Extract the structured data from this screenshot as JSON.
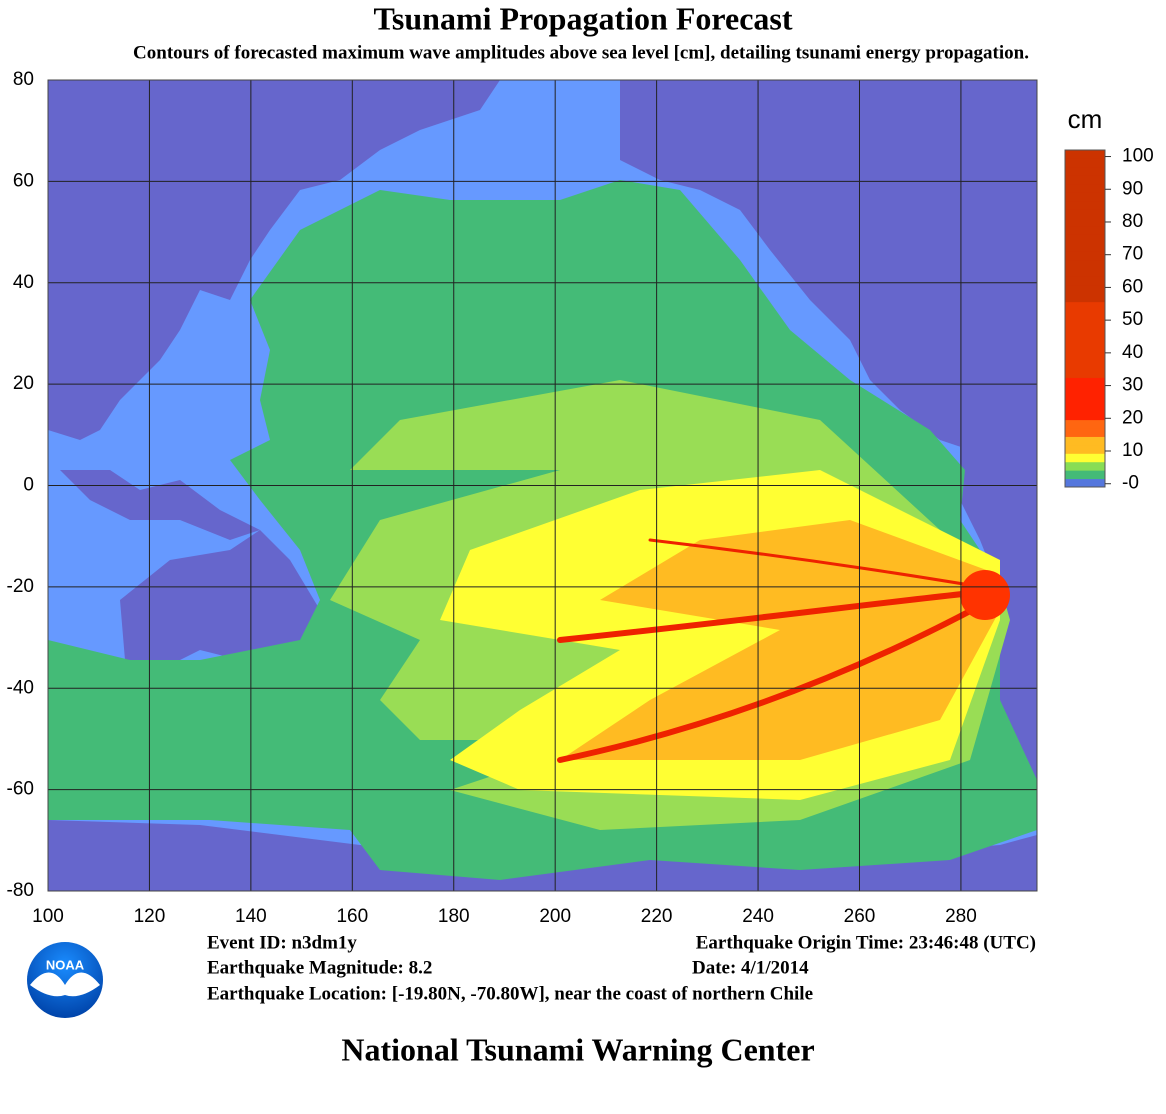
{
  "title": "Tsunami Propagation Forecast",
  "subtitle": "Contours of forecasted maximum wave amplitudes above sea level [cm], detailing tsunami energy propagation.",
  "map": {
    "xlim": [
      100,
      295
    ],
    "ylim": [
      -80,
      80
    ],
    "xticks": [
      100,
      120,
      140,
      160,
      180,
      200,
      220,
      240,
      260,
      280
    ],
    "yticks": [
      -80,
      -60,
      -40,
      -20,
      0,
      20,
      40,
      60,
      80
    ]
  },
  "colorbar": {
    "unit": "cm",
    "lim": [
      -1,
      102
    ],
    "ticks": [
      {
        "value": 0,
        "label": "-0"
      },
      10,
      20,
      30,
      40,
      50,
      60,
      70,
      80,
      90,
      100
    ]
  },
  "event": {
    "id": "Event ID: n3dm1y",
    "magnitude": "Earthquake Magnitude: 8.2",
    "location": "Earthquake Location: [-19.80N, -70.80W], near the coast of northern Chile",
    "origin_time": "Earthquake Origin Time: 23:46:48 (UTC)",
    "date": "Date: 4/1/2014"
  },
  "logo": "NOAA",
  "footer": "National Tsunami Warning Center"
}
